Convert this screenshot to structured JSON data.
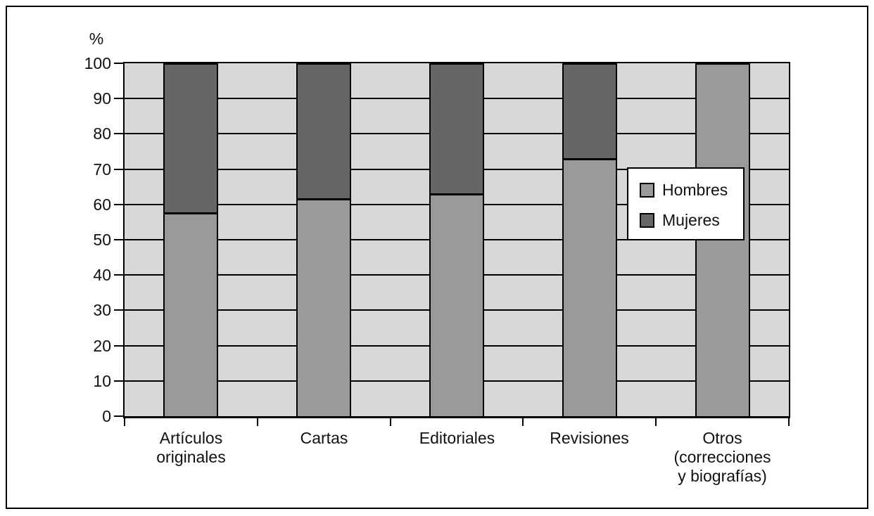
{
  "chart_data": {
    "type": "bar",
    "stacked": true,
    "orientation": "vertical",
    "ylabel": "%",
    "ylim": [
      0,
      100
    ],
    "yticks": [
      0,
      10,
      20,
      30,
      40,
      50,
      60,
      70,
      80,
      90,
      100
    ],
    "grid": true,
    "plot_bg": "#d8d8d8",
    "line_color": "#000000",
    "categories": [
      "Artículos originales",
      "Cartas",
      "Editoriales",
      "Revisiones",
      "Otros (correcciones y biografías)"
    ],
    "category_lines": [
      [
        "Artículos",
        "originales"
      ],
      [
        "Cartas"
      ],
      [
        "Editoriales"
      ],
      [
        "Revisiones"
      ],
      [
        "Otros",
        "(correcciones",
        "y biografías)"
      ]
    ],
    "series": [
      {
        "name": "Hombres",
        "color": "#9a9a9a",
        "values": [
          57.5,
          61.5,
          63,
          73,
          100
        ]
      },
      {
        "name": "Mujeres",
        "color": "#666666",
        "values": [
          42.5,
          38.5,
          37,
          27,
          0
        ]
      }
    ],
    "legend_position": "inside-right"
  }
}
